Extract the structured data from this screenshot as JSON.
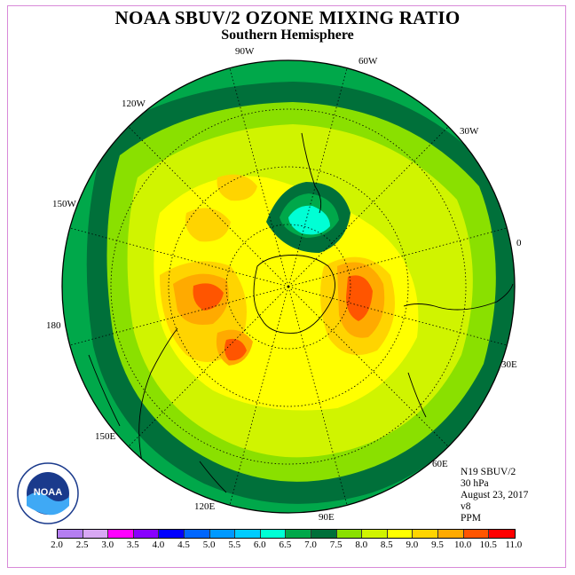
{
  "header": {
    "title": "NOAA SBUV/2 OZONE MIXING RATIO",
    "subtitle": "Southern Hemisphere"
  },
  "map": {
    "projection": "polar-stereographic-south",
    "longitude_labels": [
      "90W",
      "60W",
      "30W",
      "0",
      "30E",
      "60E",
      "90E",
      "120E",
      "150E",
      "180",
      "150W",
      "120W"
    ],
    "contour_colors": {
      "lt_6_0": "#00ffd5",
      "6_0_6_5": "#00a84a",
      "6_5_7_0": "#00703a",
      "7_0_7_5": "#8ae000",
      "7_5_8_0": "#d0f400",
      "8_0_8_5": "#ffff00",
      "8_5_9_0": "#ffd400",
      "9_0_9_5": "#ffaa00",
      "9_5_10_0": "#ff5500"
    }
  },
  "info": {
    "satellite": "N19 SBUV/2",
    "level": "30 hPa",
    "date": "August 23, 2017",
    "version": "v8",
    "units": "PPM"
  },
  "colorbar": {
    "ticks": [
      "2.0",
      "2.5",
      "3.0",
      "3.5",
      "4.0",
      "4.5",
      "5.0",
      "5.5",
      "6.0",
      "6.5",
      "7.0",
      "7.5",
      "8.0",
      "8.5",
      "9.0",
      "9.5",
      "10.0",
      "10.5",
      "11.0"
    ],
    "colors": [
      "#b47ef0",
      "#d8a8f4",
      "#ff00ff",
      "#8800ff",
      "#0000ff",
      "#0066ff",
      "#0099ff",
      "#00ccff",
      "#00ffd5",
      "#00a84a",
      "#00703a",
      "#8ae000",
      "#d0f400",
      "#ffff00",
      "#ffd400",
      "#ffaa00",
      "#ff5500",
      "#ff0000",
      "#8b4a2a"
    ]
  },
  "logo": {
    "text": "NOAA",
    "ring_text": "NATIONAL OCEANIC AND ATMOSPHERIC ADMINISTRATION · U.S. DEPARTMENT OF COMMERCE"
  }
}
